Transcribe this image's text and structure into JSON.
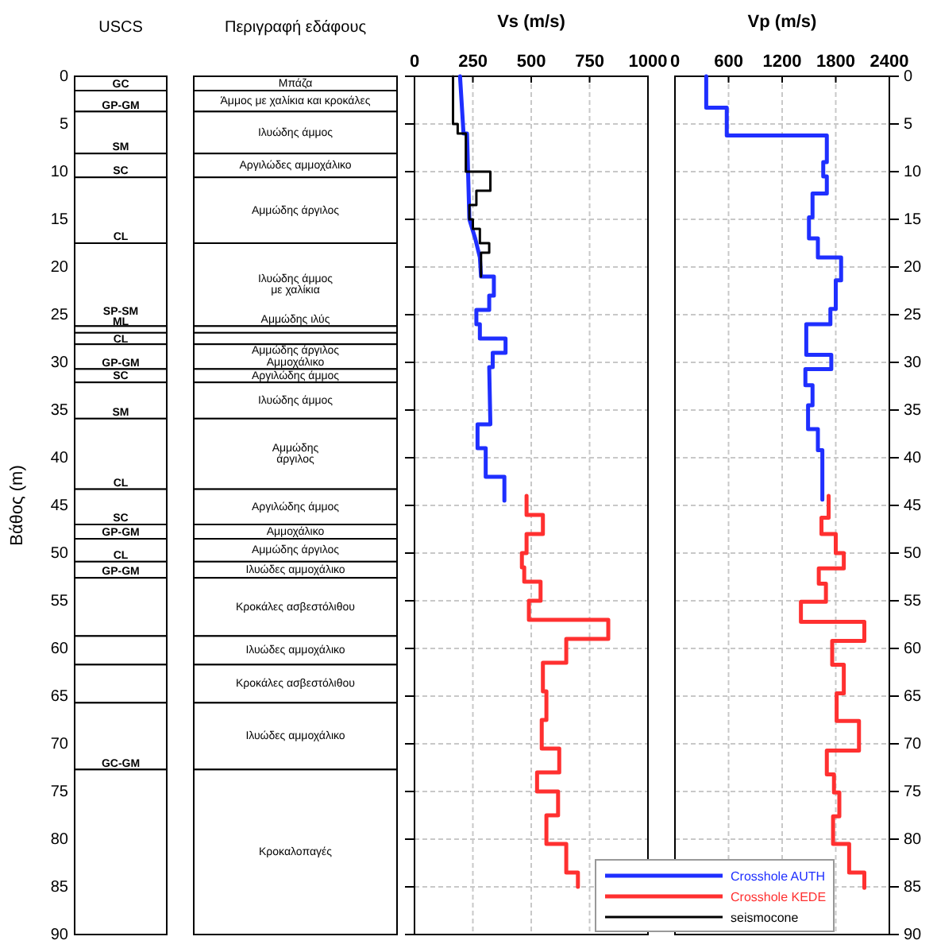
{
  "chart_data": [
    {
      "type": "bar",
      "stacked": true,
      "ylabel": "Βάθος (m)",
      "categories": [
        "USCS",
        "Περιγραφή εδάφους"
      ],
      "ylim": [
        90,
        0
      ],
      "yticks": [
        0,
        5,
        10,
        15,
        20,
        25,
        30,
        35,
        40,
        45,
        50,
        55,
        60,
        65,
        70,
        75,
        80,
        85,
        90
      ],
      "series": [
        {
          "color": "#ffffff",
          "values": [
            1.5,
            1.5
          ],
          "value_labels": [
            "GC",
            "Μπάζα"
          ]
        },
        {
          "color": "#ffffff",
          "values": [
            2.2,
            2.2
          ],
          "value_labels": [
            "GP-GM",
            "Άμμος με χαλίκια\nκαι κροκάλες"
          ]
        },
        {
          "color": "#ffffff",
          "values": [
            4.4,
            4.4
          ],
          "value_labels": [
            "SM",
            "Ιλυώδης άμμος"
          ]
        },
        {
          "color": "#ffffff",
          "values": [
            2.5,
            2.5
          ],
          "value_labels": [
            "SC",
            "Αργιλώδες αμμοχάλικο"
          ]
        },
        {
          "color": "#ffffff",
          "values": [
            6.9,
            6.9
          ],
          "value_labels": [
            "CL",
            "Αμμώδης άργιλος"
          ]
        },
        {
          "color": "#ffffff",
          "values": [
            8.7,
            8.7
          ],
          "value_labels": [
            "SP-SM",
            "Ιλυώδης άμμος\nμε χαλίκια"
          ]
        },
        {
          "color": "#ffffff",
          "values": [
            0.7,
            0.7
          ],
          "value_labels": [
            "ML",
            "Αμμώδης ιλύς"
          ]
        },
        {
          "color": "#ffffff",
          "values": [
            1.2,
            1.2
          ],
          "value_labels": [
            "CL",
            "Αμμώδης άργιλος"
          ]
        },
        {
          "color": "#ffffff",
          "values": [
            2.6,
            2.6
          ],
          "value_labels": [
            "GP-GM",
            "Αμμοχάλικο"
          ]
        },
        {
          "color": "#ffffff",
          "values": [
            1.4,
            1.4
          ],
          "value_labels": [
            "SC",
            "Αργιλώδης άμμος"
          ]
        },
        {
          "color": "#ffffff",
          "values": [
            3.8,
            3.8
          ],
          "value_labels": [
            "SM",
            "Ιλυώδης άμμος"
          ]
        },
        {
          "color": "#ffffff",
          "values": [
            7.4,
            7.4
          ],
          "value_labels": [
            "CL",
            "Αμμώδης\nάργιλος"
          ]
        },
        {
          "color": "#ffffff",
          "values": [
            3.7,
            3.7
          ],
          "value_labels": [
            "SC",
            "Αργιλώδης άμμος"
          ]
        },
        {
          "color": "#ffffff",
          "values": [
            1.5,
            1.5
          ],
          "value_labels": [
            "GP-GM",
            "Αμμοχάλικο"
          ]
        },
        {
          "color": "#ffffff",
          "values": [
            2.4,
            2.4
          ],
          "value_labels": [
            "CL",
            "Αμμώδης άργιλος"
          ]
        },
        {
          "color": "#ffffff",
          "values": [
            1.7,
            1.7
          ],
          "value_labels": [
            "GP-GM",
            "Ιλυώδες αμμοχάλικο"
          ]
        },
        {
          "color": "#ffffff",
          "values": [
            6.1,
            6.1
          ],
          "value_labels": [
            null,
            "Κροκάλες ασβεστόλιθου"
          ]
        },
        {
          "color": "#ffffff",
          "values": [
            3.0,
            3.0
          ],
          "value_labels": [
            null,
            "Ιλυώδες αμμοχάλικο"
          ]
        },
        {
          "color": "#ffffff",
          "values": [
            4.0,
            4.0
          ],
          "value_labels": [
            null,
            "Κροκάλες ασβεστόλιθου"
          ]
        },
        {
          "color": "#ffffff",
          "values": [
            7.0,
            7.0
          ],
          "value_labels": [
            "GC-GM",
            "Ιλυώδες αμμοχάλικο"
          ]
        },
        {
          "color": "#ffffff",
          "values": [
            17.3,
            17.3
          ],
          "value_labels": [
            null,
            "Κροκαλοπαγές"
          ]
        }
      ]
    },
    {
      "type": "line",
      "orientation": "horizontal",
      "xlabel": "Vs (m/s)",
      "xlim": [
        0,
        1000
      ],
      "xticks": [
        0,
        250,
        500,
        750,
        1000
      ],
      "ylim": [
        90,
        0
      ],
      "yticks": [
        0,
        5,
        10,
        15,
        20,
        25,
        30,
        35,
        40,
        45,
        50,
        55,
        60,
        65,
        70,
        75,
        80,
        85,
        90
      ],
      "grid": true,
      "tick_labels": "x",
      "legend": "bottom right",
      "series": [
        {
          "name": "Crosshole AUTH",
          "color": "#1f2fff",
          "x": [
            0,
            6,
            6,
            15,
            17,
            19,
            21,
            21,
            23,
            23,
            24.5,
            24.5,
            26,
            26,
            27.5,
            27.5,
            29,
            29,
            30.5,
            30.5,
            36.5,
            36.5,
            39,
            39,
            42,
            42,
            44.5
          ],
          "values": [
            195,
            210,
            225,
            235,
            260,
            280,
            285,
            340,
            340,
            320,
            320,
            265,
            265,
            280,
            280,
            390,
            390,
            335,
            335,
            320,
            325,
            270,
            270,
            305,
            305,
            385,
            385
          ]
        },
        {
          "name": "Crosshole KEDE",
          "color": "#ff3030",
          "x": [
            44,
            46,
            46,
            48,
            48,
            50,
            50,
            51.5,
            51.5,
            53,
            53,
            55,
            55,
            57,
            57,
            59,
            59,
            61.5,
            61.5,
            64.5,
            64.5,
            67.5,
            67.5,
            70.5,
            70.5,
            73,
            73,
            75,
            75,
            77.5,
            77.5,
            80.5,
            80.5,
            83.5,
            83.5,
            85
          ],
          "values": [
            480,
            480,
            550,
            550,
            480,
            480,
            460,
            460,
            470,
            470,
            540,
            540,
            490,
            490,
            830,
            830,
            650,
            650,
            550,
            550,
            565,
            565,
            545,
            545,
            620,
            620,
            525,
            525,
            615,
            615,
            565,
            565,
            650,
            650,
            700,
            700
          ]
        },
        {
          "name": "seismocone",
          "color": "#000000",
          "x": [
            0,
            5,
            5,
            6,
            6,
            10,
            10,
            12,
            12,
            13.5,
            13.5,
            15,
            15,
            16,
            16,
            17.5,
            17.5,
            18.5,
            18.5,
            21
          ],
          "values": [
            165,
            165,
            185,
            185,
            220,
            220,
            325,
            325,
            265,
            265,
            235,
            235,
            250,
            250,
            280,
            280,
            320,
            320,
            285,
            285
          ]
        }
      ]
    },
    {
      "type": "line",
      "orientation": "horizontal",
      "xlabel": "Vp  (m/s)",
      "xlim": [
        0,
        2400
      ],
      "xticks": [
        0,
        600,
        1200,
        1800,
        2400
      ],
      "ylim": [
        90,
        0
      ],
      "yticks": [
        0,
        5,
        10,
        15,
        20,
        25,
        30,
        35,
        40,
        45,
        50,
        55,
        60,
        65,
        70,
        75,
        80,
        85,
        90
      ],
      "grid": true,
      "series": [
        {
          "color": "#1f2fff",
          "x": [
            0,
            3.3,
            3.3,
            6.2,
            6.2,
            9,
            9,
            10.5,
            10.5,
            12.3,
            12.3,
            14.8,
            14.8,
            17,
            17,
            19,
            19,
            21.4,
            21.4,
            24.4,
            24.4,
            26,
            26,
            29.2,
            29.2,
            30.7,
            30.7,
            32.4,
            32.4,
            34.5,
            34.5,
            37,
            37,
            39.2,
            39.2,
            44.4
          ],
          "values": [
            350,
            350,
            580,
            580,
            1700,
            1700,
            1660,
            1660,
            1700,
            1700,
            1540,
            1540,
            1500,
            1500,
            1600,
            1600,
            1860,
            1860,
            1800,
            1800,
            1740,
            1740,
            1470,
            1470,
            1750,
            1750,
            1460,
            1460,
            1540,
            1540,
            1490,
            1490,
            1600,
            1600,
            1650,
            1650
          ]
        },
        {
          "color": "#ff3030",
          "x": [
            44,
            46.3,
            46.3,
            48,
            48,
            50,
            50,
            51.6,
            51.6,
            53.2,
            53.2,
            55.1,
            55.1,
            57.2,
            57.2,
            59.2,
            59.2,
            61.7,
            61.7,
            64.7,
            64.7,
            67.6,
            67.6,
            70.7,
            70.7,
            73.2,
            73.2,
            75.1,
            75.1,
            77.6,
            77.6,
            80.5,
            80.5,
            83.5,
            83.5,
            85.1
          ],
          "values": [
            1720,
            1720,
            1640,
            1640,
            1800,
            1800,
            1890,
            1890,
            1610,
            1610,
            1690,
            1690,
            1410,
            1410,
            2120,
            2120,
            1760,
            1760,
            1890,
            1890,
            1810,
            1810,
            2060,
            2060,
            1700,
            1700,
            1780,
            1780,
            1840,
            1840,
            1770,
            1770,
            1950,
            1950,
            2120,
            2120
          ]
        }
      ]
    }
  ]
}
